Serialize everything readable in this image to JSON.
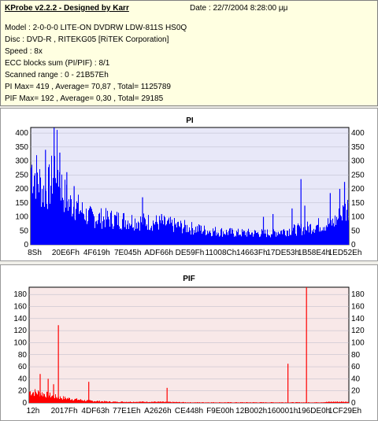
{
  "info": {
    "title": "KProbe v2.2.2 - Designed by Karr",
    "date": "Date : 22/7/2004 8:28:00 μμ",
    "model": "Model : 2-0-0-0 LITE-ON DVDRW LDW-811S   HS0Q",
    "disc": "Disc : DVD-R , RITEKG05 [RiTEK Corporation]",
    "speed": "Speed : 8x",
    "ecc": "ECC blocks sum (PI/PIF) : 8/1",
    "range": "Scanned range : 0 - 21B57Eh",
    "pi_stats": "PI Max= 419 , Average= 70,87 , Total= 1125789",
    "pif_stats": "PIF Max= 192 , Average= 0,30 , Total= 29185"
  },
  "chart_data": [
    {
      "type": "bar",
      "title": "PI",
      "series_color": "#0000ff",
      "plot_bg": "#e8e8f8",
      "yticks": [
        0,
        50,
        100,
        150,
        200,
        250,
        300,
        350,
        400
      ],
      "ylim": [
        0,
        420
      ],
      "xticks": [
        "8Sh",
        "20E6Fh",
        "4F619h",
        "7E045h",
        "ADF66h",
        "DE59Fh",
        "11008Ch",
        "14663Fh",
        "17DE53h",
        "1B58E4h",
        "1ED52Eh"
      ],
      "envelope": [
        [
          0,
          300
        ],
        [
          2,
          260
        ],
        [
          4,
          200
        ],
        [
          6,
          230
        ],
        [
          8,
          330
        ],
        [
          10,
          200
        ],
        [
          12,
          160
        ],
        [
          14,
          150
        ],
        [
          16,
          130
        ],
        [
          18,
          110
        ],
        [
          20,
          105
        ],
        [
          25,
          100
        ],
        [
          30,
          95
        ],
        [
          35,
          90
        ],
        [
          40,
          85
        ],
        [
          45,
          75
        ],
        [
          50,
          65
        ],
        [
          55,
          55
        ],
        [
          60,
          50
        ],
        [
          65,
          45
        ],
        [
          70,
          45
        ],
        [
          75,
          45
        ],
        [
          80,
          55
        ],
        [
          85,
          60
        ],
        [
          90,
          75
        ],
        [
          95,
          85
        ],
        [
          100,
          150
        ]
      ],
      "spikes": [
        [
          7.2,
          419
        ],
        [
          4.5,
          340
        ],
        [
          9.0,
          330
        ],
        [
          11.2,
          260
        ],
        [
          13.5,
          210
        ],
        [
          35.0,
          170
        ],
        [
          41.0,
          110
        ],
        [
          53.0,
          70
        ],
        [
          73.0,
          100
        ],
        [
          76.0,
          110
        ],
        [
          82.0,
          130
        ],
        [
          84.8,
          235
        ],
        [
          86.0,
          140
        ],
        [
          94.0,
          185
        ],
        [
          97.0,
          200
        ],
        [
          98.5,
          225
        ]
      ]
    },
    {
      "type": "bar",
      "title": "PIF",
      "series_color": "#ff0000",
      "plot_bg": "#f8e8e8",
      "yticks": [
        0,
        20,
        40,
        60,
        80,
        100,
        120,
        140,
        160,
        180
      ],
      "ylim": [
        0,
        192
      ],
      "xticks": [
        "12h",
        "2017Fh",
        "4DF63h",
        "77E1Eh",
        "A2626h",
        "CE448h",
        "F9E00h",
        "12B002h",
        "160001h",
        "196DE0h",
        "1CF29Eh"
      ],
      "envelope": [
        [
          0,
          20
        ],
        [
          3,
          18
        ],
        [
          6,
          14
        ],
        [
          9,
          10
        ],
        [
          12,
          8
        ],
        [
          15,
          6
        ],
        [
          18,
          4
        ],
        [
          22,
          3
        ],
        [
          26,
          2
        ],
        [
          30,
          2
        ],
        [
          40,
          2
        ],
        [
          50,
          1
        ],
        [
          60,
          1
        ],
        [
          70,
          1
        ],
        [
          80,
          1
        ],
        [
          90,
          1
        ],
        [
          95,
          2
        ],
        [
          100,
          2
        ]
      ],
      "spikes": [
        [
          3.3,
          48
        ],
        [
          5.8,
          40
        ],
        [
          9.0,
          129
        ],
        [
          7.5,
          31
        ],
        [
          18.5,
          35
        ],
        [
          43.0,
          25
        ],
        [
          80.8,
          65
        ],
        [
          86.6,
          192
        ]
      ]
    }
  ]
}
